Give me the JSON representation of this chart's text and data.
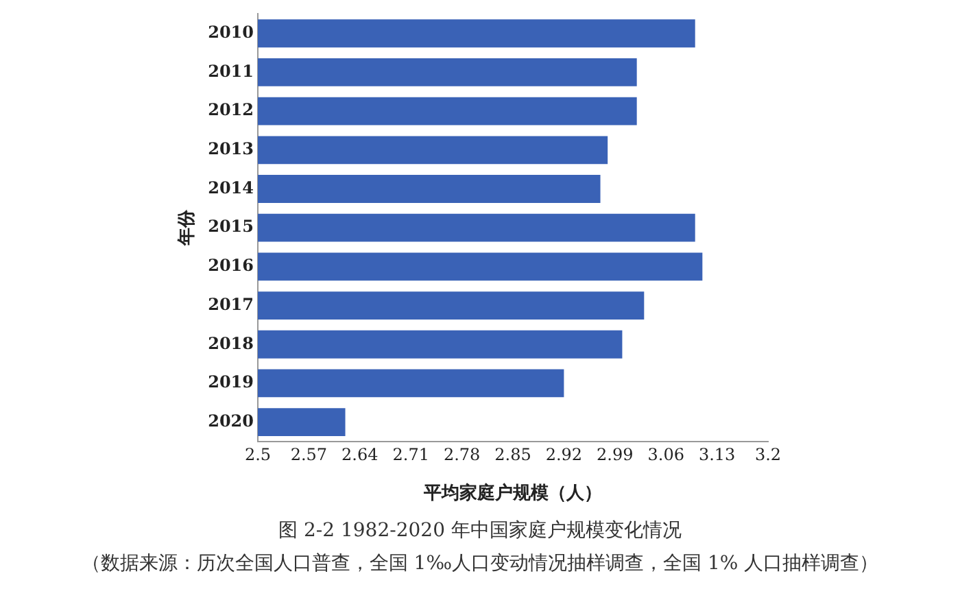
{
  "chart_data": {
    "type": "bar",
    "orientation": "horizontal",
    "title": "图 2-2 1982-2020 年中国家庭户规模变化情况",
    "annotations": [
      "（数据来源：历次全国人口普查，全国 1‰人口变动情况抽样调查，全国 1% 人口抽样调查）"
    ],
    "xlabel": "平均家庭户规模（人）",
    "ylabel": "年份",
    "categories": [
      "2010",
      "2011",
      "2012",
      "2013",
      "2014",
      "2015",
      "2016",
      "2017",
      "2018",
      "2019",
      "2020"
    ],
    "values": [
      3.1,
      3.02,
      3.02,
      2.98,
      2.97,
      3.1,
      3.11,
      3.03,
      3.0,
      2.92,
      2.62
    ],
    "color": "#3a62b6",
    "xlim": [
      2.5,
      3.2
    ],
    "xticks": [
      2.5,
      2.57,
      2.64,
      2.71,
      2.78,
      2.85,
      2.92,
      2.99,
      3.06,
      3.13,
      3.2
    ],
    "grid": false,
    "legend": false
  }
}
